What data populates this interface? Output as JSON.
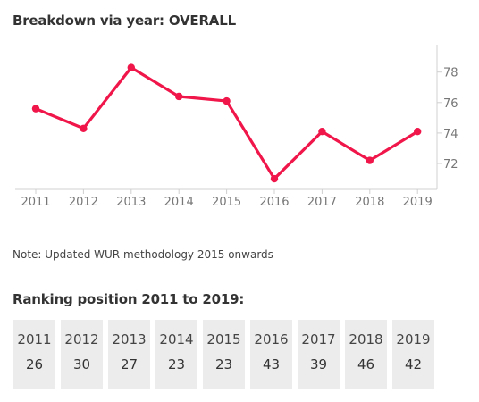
{
  "title": "Breakdown via year: OVERALL",
  "note": "Note: Updated WUR methodology 2015 onwards",
  "ranking": {
    "title": "Ranking position 2011 to 2019:",
    "items": [
      {
        "year": "2011",
        "rank": "26"
      },
      {
        "year": "2012",
        "rank": "30"
      },
      {
        "year": "2013",
        "rank": "27"
      },
      {
        "year": "2014",
        "rank": "23"
      },
      {
        "year": "2015",
        "rank": "23"
      },
      {
        "year": "2016",
        "rank": "43"
      },
      {
        "year": "2017",
        "rank": "39"
      },
      {
        "year": "2018",
        "rank": "46"
      },
      {
        "year": "2019",
        "rank": "42"
      }
    ]
  },
  "colors": {
    "line": "#f0164a",
    "axis": "#d0d0d0",
    "tick_text": "#777777"
  },
  "chart_data": {
    "type": "line",
    "x": [
      "2011",
      "2012",
      "2013",
      "2014",
      "2015",
      "2016",
      "2017",
      "2018",
      "2019"
    ],
    "series": [
      {
        "values": [
          75.6,
          74.3,
          78.3,
          76.4,
          76.1,
          71.0,
          74.1,
          72.2,
          74.1
        ]
      }
    ],
    "yticks": [
      72,
      74,
      76,
      78
    ],
    "ylim": [
      70.3,
      79.8
    ],
    "y_axis_position": "right",
    "grid": false,
    "legend": "none"
  }
}
